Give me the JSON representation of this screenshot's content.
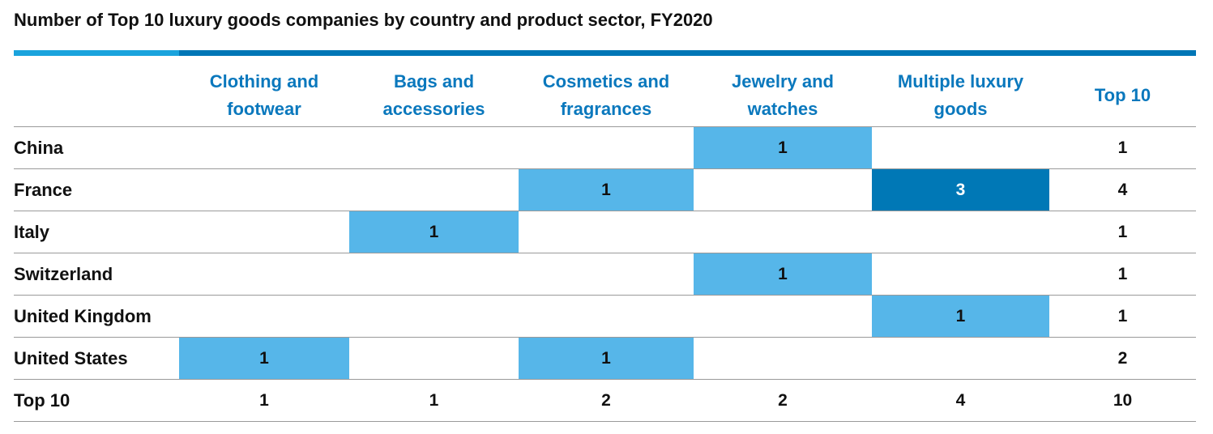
{
  "title": "Number of Top 10 luxury goods companies by country and product sector, FY2020",
  "chart_data": {
    "type": "table",
    "columns": [
      "Clothing and footwear",
      "Bags and accessories",
      "Cosmetics and fragrances",
      "Jewelry and watches",
      "Multiple luxury goods",
      "Top 10"
    ],
    "column_headers": [
      [
        "Clothing and",
        "footwear"
      ],
      [
        "Bags and",
        "accessories"
      ],
      [
        "Cosmetics and",
        "fragrances"
      ],
      [
        "Jewelry and",
        "watches"
      ],
      [
        "Multiple luxury",
        "goods"
      ],
      [
        "Top 10"
      ]
    ],
    "rows": [
      {
        "label": "China",
        "values": [
          null,
          null,
          null,
          1,
          null
        ],
        "total": 1
      },
      {
        "label": "France",
        "values": [
          null,
          null,
          1,
          null,
          3
        ],
        "total": 4
      },
      {
        "label": "Italy",
        "values": [
          null,
          1,
          null,
          null,
          null
        ],
        "total": 1
      },
      {
        "label": "Switzerland",
        "values": [
          null,
          null,
          null,
          1,
          null
        ],
        "total": 1
      },
      {
        "label": "United Kingdom",
        "values": [
          null,
          null,
          null,
          null,
          1
        ],
        "total": 1
      },
      {
        "label": "United States",
        "values": [
          1,
          null,
          1,
          null,
          null
        ],
        "total": 2
      }
    ],
    "totals_row": {
      "label": "Top 10",
      "values": [
        1,
        1,
        2,
        2,
        4
      ],
      "total": 10
    },
    "colors": {
      "low": "#56b6e9",
      "high": "#0078b6",
      "accent_bar_light": "#1aa3dd",
      "accent_bar_dark": "#0076b6",
      "header_text": "#0a78bd"
    }
  }
}
